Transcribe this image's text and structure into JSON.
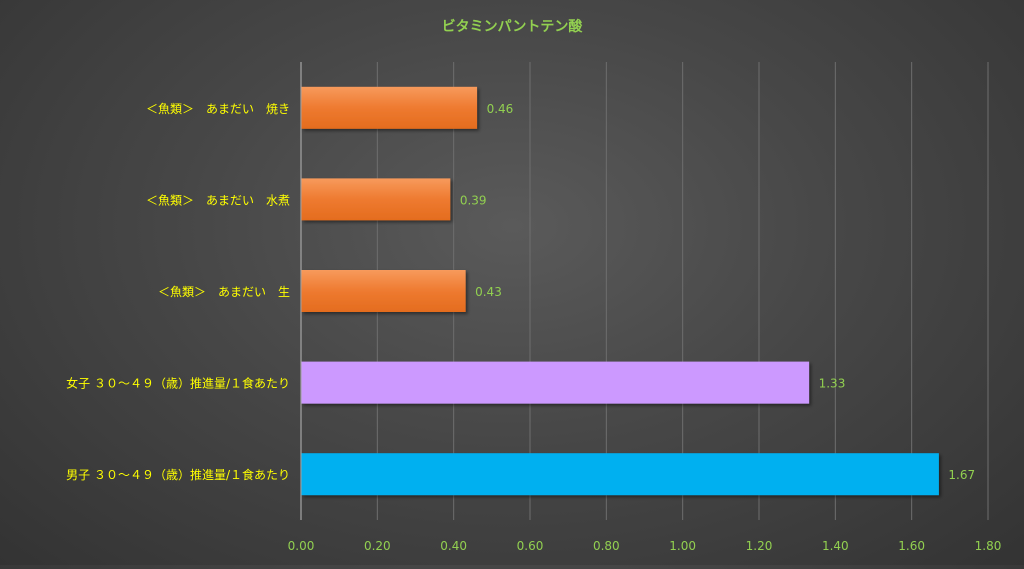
{
  "colors": {
    "title": "#92d050",
    "category_label": "#ffff00",
    "value_label": "#92d050",
    "tick_label": "#92d050",
    "gridline": "#6e6e6e",
    "axis_line": "#a6a6a6"
  },
  "chart_data": {
    "type": "bar",
    "orientation": "horizontal",
    "title": "ビタミンパントテン酸",
    "xlabel": "",
    "ylabel": "",
    "xlim": [
      0,
      1.8
    ],
    "ticks": [
      "0.00",
      "0.20",
      "0.40",
      "0.60",
      "0.80",
      "1.00",
      "1.20",
      "1.40",
      "1.60",
      "1.80"
    ],
    "grid": true,
    "legend": "none",
    "categories": [
      "＜魚類＞　あまだい　焼き",
      "＜魚類＞　あまだい　水煮",
      "＜魚類＞　あまだい　生",
      "女子 ３０～４９（歳）推進量/１食あたり",
      "男子 ３０～４９（歳）推進量/１食あたり"
    ],
    "values": [
      0.46,
      0.39,
      0.43,
      1.33,
      1.67
    ],
    "value_labels": [
      "0.46",
      "0.39",
      "0.43",
      "1.33",
      "1.67"
    ],
    "bar_colors": [
      "#ed7d31",
      "#ed7d31",
      "#ed7d31",
      "#cc99ff",
      "#00b0f0"
    ]
  }
}
